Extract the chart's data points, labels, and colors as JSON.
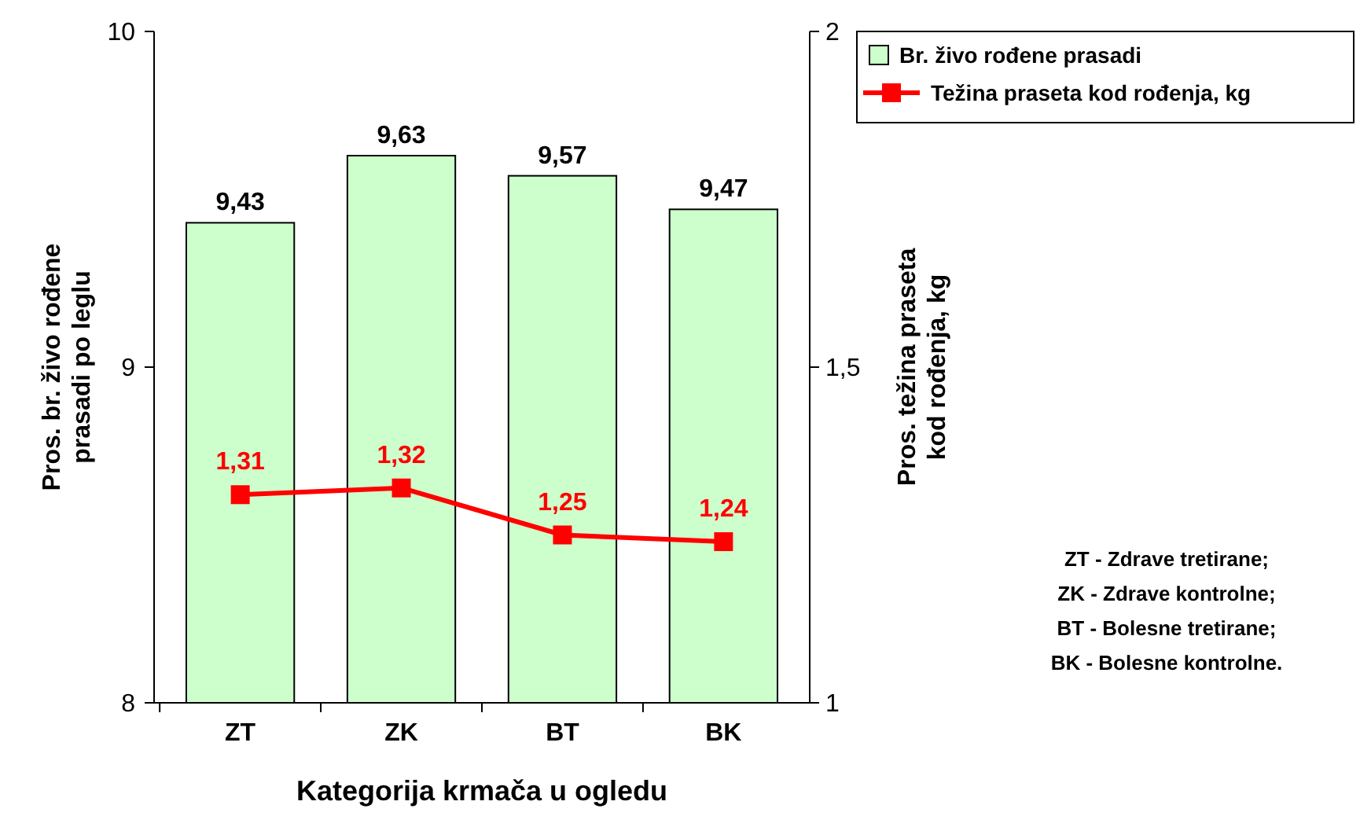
{
  "chart_data": {
    "type": "bar",
    "xlabel": "Kategorija krmača u ogledu",
    "ylabel": "Pros. br. živo rođene prasadi po leglu",
    "y2label": "Pros. težina praseta kod rođenja, kg",
    "categories": [
      "ZT",
      "ZK",
      "BT",
      "BK"
    ],
    "series": [
      {
        "name": "Br. živo rođene prasadi",
        "color": "#ccffcc",
        "values": [
          9.43,
          9.63,
          9.57,
          9.47
        ],
        "value_labels": [
          "9,43",
          "9,63",
          "9,57",
          "9,47"
        ]
      },
      {
        "name": "Težina praseta kod rođenja, kg",
        "type": "line",
        "axis": "y2",
        "color": "#ff0000",
        "marker": "square",
        "line_style": "solid",
        "values": [
          1.31,
          1.32,
          1.25,
          1.24
        ],
        "value_labels": [
          "1,31",
          "1,32",
          "1,25",
          "1,24"
        ]
      }
    ],
    "ylim": [
      8,
      10
    ],
    "yticks": [
      8,
      9,
      10
    ],
    "y2lim": [
      1,
      2
    ],
    "y2ticks": [
      1,
      {
        "value": 1.5,
        "label": "1,5"
      },
      2
    ],
    "legend": "top right",
    "grid": false,
    "annotations": [
      "ZT - Zdrave tretirane;",
      "ZK - Zdrave kontrolne;",
      "BT - Bolesne tretirane;",
      "BK - Bolesne kontrolne."
    ]
  }
}
